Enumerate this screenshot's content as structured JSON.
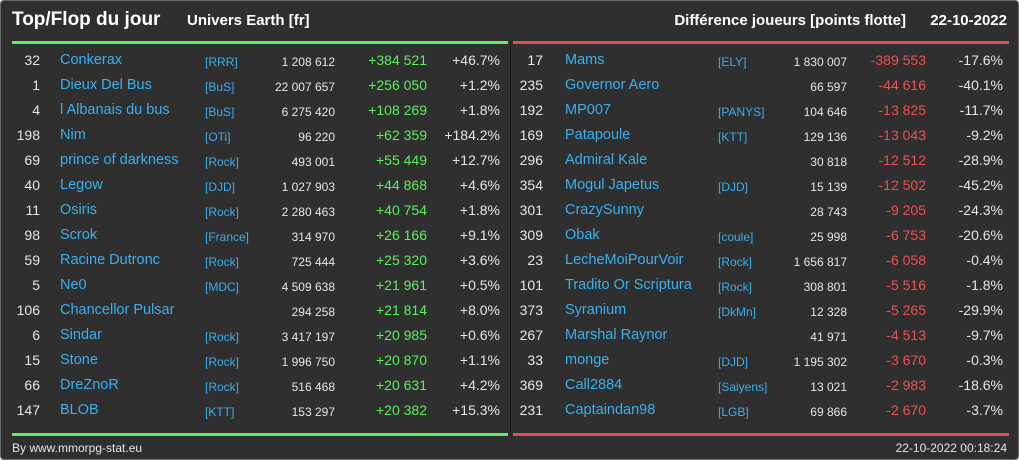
{
  "header": {
    "title": "Top/Flop du jour",
    "universe": "Univers Earth [fr]",
    "metric": "Différence joueurs [points flotte]",
    "date": "22-10-2022"
  },
  "top": [
    {
      "rank": "32",
      "name": "Conkerax",
      "ally": "[RRR]",
      "points": "1 208 612",
      "diff": "+384 521",
      "pct": "+46.7%"
    },
    {
      "rank": "1",
      "name": "Dieux Del Bus",
      "ally": "[BuS]",
      "points": "22 007 657",
      "diff": "+256 050",
      "pct": "+1.2%"
    },
    {
      "rank": "4",
      "name": "l Albanais du bus",
      "ally": "[BuS]",
      "points": "6 275 420",
      "diff": "+108 269",
      "pct": "+1.8%"
    },
    {
      "rank": "198",
      "name": "Nim",
      "ally": "[OTi]",
      "points": "96 220",
      "diff": "+62 359",
      "pct": "+184.2%"
    },
    {
      "rank": "69",
      "name": "prince of darkness",
      "ally": "[Rock]",
      "points": "493 001",
      "diff": "+55 449",
      "pct": "+12.7%"
    },
    {
      "rank": "40",
      "name": "Legow",
      "ally": "[DJD]",
      "points": "1 027 903",
      "diff": "+44 868",
      "pct": "+4.6%"
    },
    {
      "rank": "11",
      "name": "Osiris",
      "ally": "[Rock]",
      "points": "2 280 463",
      "diff": "+40 754",
      "pct": "+1.8%"
    },
    {
      "rank": "98",
      "name": "Scrok",
      "ally": "[France]",
      "points": "314 970",
      "diff": "+26 166",
      "pct": "+9.1%"
    },
    {
      "rank": "59",
      "name": "Racine Dutronc",
      "ally": "[Rock]",
      "points": "725 444",
      "diff": "+25 320",
      "pct": "+3.6%"
    },
    {
      "rank": "5",
      "name": "Ne0",
      "ally": "[MDC]",
      "points": "4 509 638",
      "diff": "+21 961",
      "pct": "+0.5%"
    },
    {
      "rank": "106",
      "name": "Chancellor Pulsar",
      "ally": "",
      "points": "294 258",
      "diff": "+21 814",
      "pct": "+8.0%"
    },
    {
      "rank": "6",
      "name": "Sindar",
      "ally": "[Rock]",
      "points": "3 417 197",
      "diff": "+20 985",
      "pct": "+0.6%"
    },
    {
      "rank": "15",
      "name": "Stone",
      "ally": "[Rock]",
      "points": "1 996 750",
      "diff": "+20 870",
      "pct": "+1.1%"
    },
    {
      "rank": "66",
      "name": "DreZnoR",
      "ally": "[Rock]",
      "points": "516 468",
      "diff": "+20 631",
      "pct": "+4.2%"
    },
    {
      "rank": "147",
      "name": "BLOB",
      "ally": "[KTT]",
      "points": "153 297",
      "diff": "+20 382",
      "pct": "+15.3%"
    }
  ],
  "flop": [
    {
      "rank": "17",
      "name": "Mams",
      "ally": "[ELY]",
      "points": "1 830 007",
      "diff": "-389 553",
      "pct": "-17.6%"
    },
    {
      "rank": "235",
      "name": "Governor Aero",
      "ally": "",
      "points": "66 597",
      "diff": "-44 616",
      "pct": "-40.1%"
    },
    {
      "rank": "192",
      "name": "MP007",
      "ally": "[PANYS]",
      "points": "104 646",
      "diff": "-13 825",
      "pct": "-11.7%"
    },
    {
      "rank": "169",
      "name": "Patapoule",
      "ally": "[KTT]",
      "points": "129 136",
      "diff": "-13 043",
      "pct": "-9.2%"
    },
    {
      "rank": "296",
      "name": "Admiral Kale",
      "ally": "",
      "points": "30 818",
      "diff": "-12 512",
      "pct": "-28.9%"
    },
    {
      "rank": "354",
      "name": "Mogul Japetus",
      "ally": "[DJD]",
      "points": "15 139",
      "diff": "-12 502",
      "pct": "-45.2%"
    },
    {
      "rank": "301",
      "name": "CrazySunny",
      "ally": "",
      "points": "28 743",
      "diff": "-9 205",
      "pct": "-24.3%"
    },
    {
      "rank": "309",
      "name": "Obak",
      "ally": "[coule]",
      "points": "25 998",
      "diff": "-6 753",
      "pct": "-20.6%"
    },
    {
      "rank": "23",
      "name": "LecheMoiPourVoir",
      "ally": "[Rock]",
      "points": "1 656 817",
      "diff": "-6 058",
      "pct": "-0.4%"
    },
    {
      "rank": "101",
      "name": "Tradito Or Scriptura",
      "ally": "[Rock]",
      "points": "308 801",
      "diff": "-5 516",
      "pct": "-1.8%"
    },
    {
      "rank": "373",
      "name": "Syranium",
      "ally": "[DkMn]",
      "points": "12 328",
      "diff": "-5 265",
      "pct": "-29.9%"
    },
    {
      "rank": "267",
      "name": "Marshal Raynor",
      "ally": "",
      "points": "41 971",
      "diff": "-4 513",
      "pct": "-9.7%"
    },
    {
      "rank": "33",
      "name": "monge",
      "ally": "[DJD]",
      "points": "1 195 302",
      "diff": "-3 670",
      "pct": "-0.3%"
    },
    {
      "rank": "369",
      "name": "Call2884",
      "ally": "[Saiyens]",
      "points": "13 021",
      "diff": "-2 983",
      "pct": "-18.6%"
    },
    {
      "rank": "231",
      "name": "Captaindan98",
      "ally": "[LGB]",
      "points": "69 866",
      "diff": "-2 670",
      "pct": "-3.7%"
    }
  ],
  "footer": {
    "source": "By www.mmorpg-stat.eu",
    "timestamp": "22-10-2022 00:18:24"
  },
  "colors": {
    "background": "#2f2f2f",
    "top_accent": "#5cf05c",
    "flop_accent": "#e05050",
    "link": "#3ab0f0"
  }
}
